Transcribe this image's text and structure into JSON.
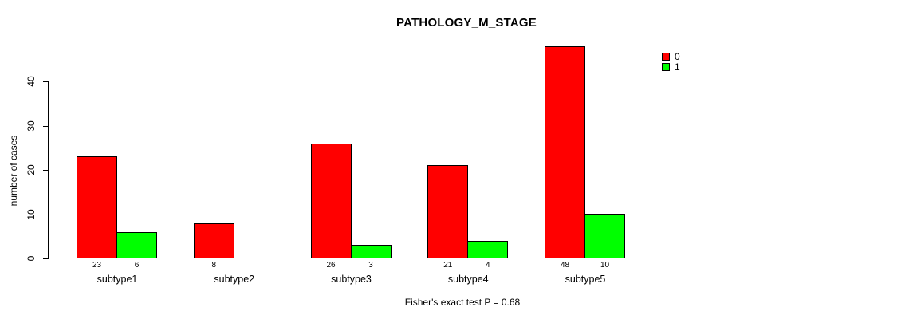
{
  "title": "PATHOLOGY_M_STAGE",
  "footer": "Fisher's exact test P = 0.68",
  "y_axis": {
    "label": "number of cases",
    "ticks": [
      0,
      10,
      20,
      30,
      40
    ]
  },
  "legend": {
    "entries": [
      {
        "label": "0",
        "color": "#FF0000"
      },
      {
        "label": "1",
        "color": "#00FF00"
      }
    ]
  },
  "colors": {
    "series0": "#FF0000",
    "series1": "#00FF00",
    "border": "#000000",
    "background": "#FFFFFF"
  },
  "chart_data": {
    "type": "bar",
    "title": "PATHOLOGY_M_STAGE",
    "xlabel": "",
    "ylabel": "number of cases",
    "categories": [
      "subtype1",
      "subtype2",
      "subtype3",
      "subtype4",
      "subtype5"
    ],
    "series": [
      {
        "name": "0",
        "color": "#FF0000",
        "values": [
          23,
          8,
          26,
          21,
          48
        ]
      },
      {
        "name": "1",
        "color": "#00FF00",
        "values": [
          6,
          0,
          3,
          4,
          10
        ]
      }
    ],
    "bar_value_labels_shown": true,
    "ylim": [
      0,
      48
    ],
    "y_ticks": [
      0,
      10,
      20,
      30,
      40
    ],
    "grid": false,
    "legend_position": "top-right",
    "annotation": "Fisher's exact test P = 0.68"
  }
}
